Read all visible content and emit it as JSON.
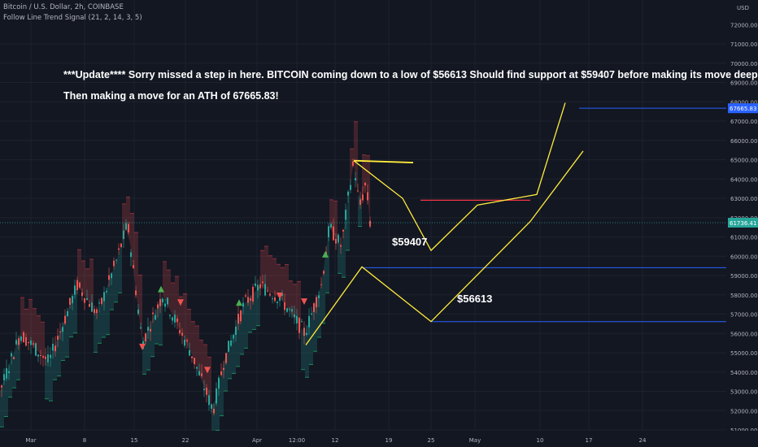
{
  "header": {
    "symbol": "Bitcoin / U.S. Dollar, 2h, COINBASE",
    "indicator": "Follow Line Trend Signal (21, 2, 14, 3, 5)"
  },
  "annotations": {
    "line1": "***Update**** Sorry missed a step in here.  BITCOIN coming down to a low of $56613  Should find support at $59407  before making its move deeper.",
    "line2": "Then making a move for an ATH of 67665.83!",
    "label_support": "$59407",
    "label_low": "$56613"
  },
  "price_axis": {
    "currency": "USD",
    "top_label": "72000.00",
    "ticks": [
      "71000.00",
      "70000.00",
      "69000.00",
      "68000.00",
      "67000.00",
      "66000.00",
      "65000.00",
      "64000.00",
      "63000.00",
      "62000.00",
      "61000.00",
      "60000.00",
      "59000.00",
      "58000.00",
      "57000.00",
      "56000.00",
      "55000.00",
      "54000.00",
      "53000.00",
      "52000.00",
      "51000.00"
    ],
    "tick_values": [
      71000,
      70000,
      69000,
      68000,
      67000,
      66000,
      65000,
      64000,
      63000,
      62000,
      61000,
      60000,
      59000,
      58000,
      57000,
      56000,
      55000,
      54000,
      53000,
      52000,
      51000
    ],
    "current_price_label": "61736.41",
    "ath_label": "67665.83"
  },
  "time_axis": {
    "labels": [
      "Mar",
      "8",
      "15",
      "22",
      "Apr",
      "12:00",
      "12",
      "19",
      "25",
      "May",
      "10",
      "17",
      "24"
    ]
  },
  "chart_data": {
    "type": "line",
    "title": "Bitcoin / U.S. Dollar, 2h, COINBASE",
    "ylim": [
      50500,
      72200
    ],
    "levels": [
      {
        "name": "support",
        "value": 59407
      },
      {
        "name": "low",
        "value": 56613
      },
      {
        "name": "ath",
        "value": 67665.83
      },
      {
        "name": "current",
        "value": 61736.41
      }
    ],
    "price_path": [
      {
        "x": "Mar",
        "y": 53000
      },
      {
        "x": "8",
        "y": 58500
      },
      {
        "x": "15",
        "y": 61700
      },
      {
        "x": "22",
        "y": 53000
      },
      {
        "x": "Apr",
        "y": 57500
      },
      {
        "x": "12:00",
        "y": 59000
      },
      {
        "x": "12",
        "y": 61500
      },
      {
        "x": "13",
        "y": 64900
      },
      {
        "x": "16",
        "y": 61736.41
      }
    ],
    "projection_1": [
      {
        "x": "14",
        "y": 64900
      },
      {
        "x": "21",
        "y": 62900
      },
      {
        "x": "25",
        "y": 60300
      },
      {
        "x": "29",
        "y": 62600
      },
      {
        "x": "May",
        "y": 63100
      },
      {
        "x": "10",
        "y": 64200
      },
      {
        "x": "14",
        "y": 67900
      }
    ],
    "projection_2": [
      {
        "x": "Apr",
        "y": 55400
      },
      {
        "x": "16",
        "y": 59400
      },
      {
        "x": "25",
        "y": 56613
      },
      {
        "x": "10",
        "y": 61800
      },
      {
        "x": "17",
        "y": 65500
      }
    ],
    "signals": [
      {
        "type": "buy",
        "x": "15"
      },
      {
        "type": "sell",
        "x": "14"
      },
      {
        "type": "sell",
        "x": "18"
      },
      {
        "type": "sell",
        "x": "23"
      },
      {
        "type": "buy",
        "x": "Apr"
      },
      {
        "type": "sell",
        "x": "12:00"
      },
      {
        "type": "sell",
        "x": "11"
      },
      {
        "type": "buy",
        "x": "12"
      }
    ],
    "colors": {
      "background": "#131722",
      "up": "#26a69a",
      "down": "#ef5350",
      "projection": "#ffeb3b",
      "level": "#2962ff",
      "resistance": "#f23645",
      "current": "#26a69a"
    }
  }
}
